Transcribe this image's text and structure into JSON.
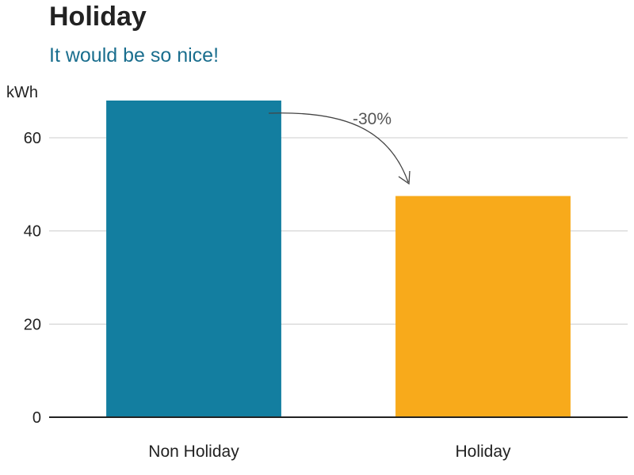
{
  "chart_data": {
    "type": "bar",
    "title": "Holiday",
    "subtitle": "It would be so nice!",
    "ylabel": "kWh",
    "xlabel": "",
    "categories": [
      "Non Holiday",
      "Holiday"
    ],
    "values": [
      68,
      47.5
    ],
    "colors": [
      "#137ea0",
      "#f8aa1b"
    ],
    "ylim": [
      0,
      68
    ],
    "yticks": [
      0,
      20,
      40,
      60
    ],
    "grid": true,
    "annotation": {
      "text": "-30%",
      "from": "Non Holiday",
      "to": "Holiday"
    }
  },
  "colors": {
    "title": "#222222",
    "subtitle": "#1a6e8e",
    "grid": "#cccccc",
    "axis": "#222222",
    "annotation": "#555555"
  }
}
